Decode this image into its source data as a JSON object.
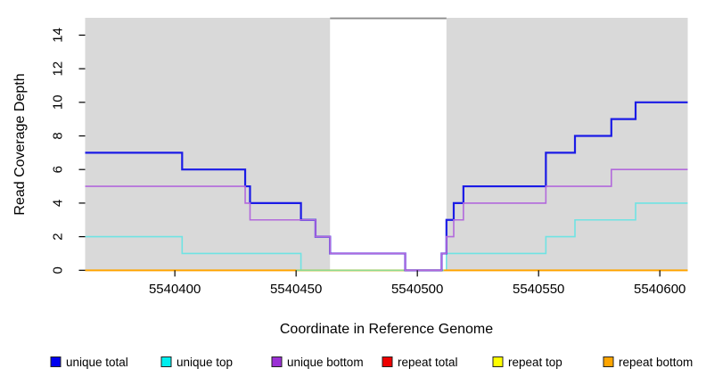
{
  "page_title": "Read coverage depth step plot",
  "chart_data": {
    "type": "line",
    "subtype": "step-coverage-plot",
    "title": "",
    "x_axis": {
      "label": "Coordinate in Reference Genome",
      "ticks": [
        5540400,
        5540450,
        5540500,
        5540550,
        5540600
      ],
      "range": [
        5540363,
        5540611.5
      ],
      "grid": false
    },
    "y_axis": {
      "label": "Read Coverage Depth",
      "ticks": [
        0,
        2,
        4,
        6,
        8,
        10,
        12,
        14
      ],
      "range": [
        0,
        15.03
      ],
      "grid": false
    },
    "plot_background_color": "#D9D9D9",
    "highlight_gap": {
      "description": "white unshaded region in middle of plot",
      "from": 5540464,
      "to": 5540512,
      "fill": "#FFFFFF",
      "top_value": 15,
      "border_color": "#8C8C8C"
    },
    "series": {
      "unique_total": {
        "label": "unique total",
        "kind": "step",
        "color": "#1B1BE6",
        "legend_color": "#0000EE",
        "width": 2.2,
        "steps": [
          [
            5540363,
            7
          ],
          [
            5540403,
            6
          ],
          [
            5540429,
            5
          ],
          [
            5540431,
            4
          ],
          [
            5540452,
            3
          ],
          [
            5540458,
            2
          ],
          [
            5540464,
            1
          ],
          [
            5540495,
            0
          ],
          [
            5540510,
            1
          ],
          [
            5540512,
            3
          ],
          [
            5540515,
            4
          ],
          [
            5540519,
            5
          ],
          [
            5540553,
            7
          ],
          [
            5540565,
            8
          ],
          [
            5540580,
            9
          ],
          [
            5540590,
            10
          ]
        ]
      },
      "unique_top": {
        "label": "unique top",
        "kind": "step",
        "color": "#6FE3E3",
        "legend_color": "#00EEEE",
        "width": 1.6,
        "steps": [
          [
            5540363,
            2
          ],
          [
            5540403,
            1
          ],
          [
            5540452,
            0
          ],
          [
            5540512,
            1
          ],
          [
            5540553,
            2
          ],
          [
            5540565,
            3
          ],
          [
            5540590,
            4
          ]
        ]
      },
      "unique_bottom": {
        "label": "unique bottom",
        "kind": "step",
        "color": "#B269DC",
        "legend_color": "#9B30D5",
        "width": 1.6,
        "steps": [
          [
            5540363,
            5
          ],
          [
            5540429,
            4
          ],
          [
            5540431,
            3
          ],
          [
            5540458,
            2
          ],
          [
            5540464,
            1
          ],
          [
            5540495,
            0
          ],
          [
            5540510,
            1
          ],
          [
            5540512,
            2
          ],
          [
            5540515,
            3
          ],
          [
            5540519,
            4
          ],
          [
            5540553,
            5
          ],
          [
            5540580,
            6
          ]
        ]
      },
      "repeat_total": {
        "label": "repeat total",
        "kind": "step",
        "color": "#DE0000",
        "legend_color": "#EE0000",
        "width": 1.6,
        "steps": [
          [
            5540363,
            0
          ]
        ]
      },
      "repeat_top": {
        "label": "repeat top",
        "kind": "step",
        "color": "#FFFF00",
        "legend_color": "#FFFF00",
        "width": 1.6,
        "steps": [
          [
            5540363,
            0
          ]
        ]
      },
      "repeat_bottom": {
        "label": "repeat bottom",
        "kind": "step",
        "color": "#FFA500",
        "legend_color": "#FFA500",
        "width": 1.8,
        "steps": [
          [
            5540363,
            0
          ]
        ]
      },
      "zero_marker": {
        "label": "",
        "kind": "segment",
        "color": "#8FDB8F",
        "width": 1.6,
        "points": [
          [
            5540450,
            0
          ],
          [
            5540511,
            0
          ]
        ]
      }
    },
    "draw_order": [
      "repeat_total",
      "repeat_top",
      "unique_top",
      "repeat_bottom",
      "zero_marker",
      "unique_total",
      "unique_bottom"
    ],
    "legend": {
      "position": "bottom",
      "items": [
        {
          "key": "unique_total",
          "label": "unique total"
        },
        {
          "key": "unique_top",
          "label": "unique top"
        },
        {
          "key": "unique_bottom",
          "label": "unique bottom"
        },
        {
          "key": "repeat_total",
          "label": "repeat total"
        },
        {
          "key": "repeat_top",
          "label": "repeat top"
        },
        {
          "key": "repeat_bottom",
          "label": "repeat bottom"
        }
      ]
    }
  }
}
